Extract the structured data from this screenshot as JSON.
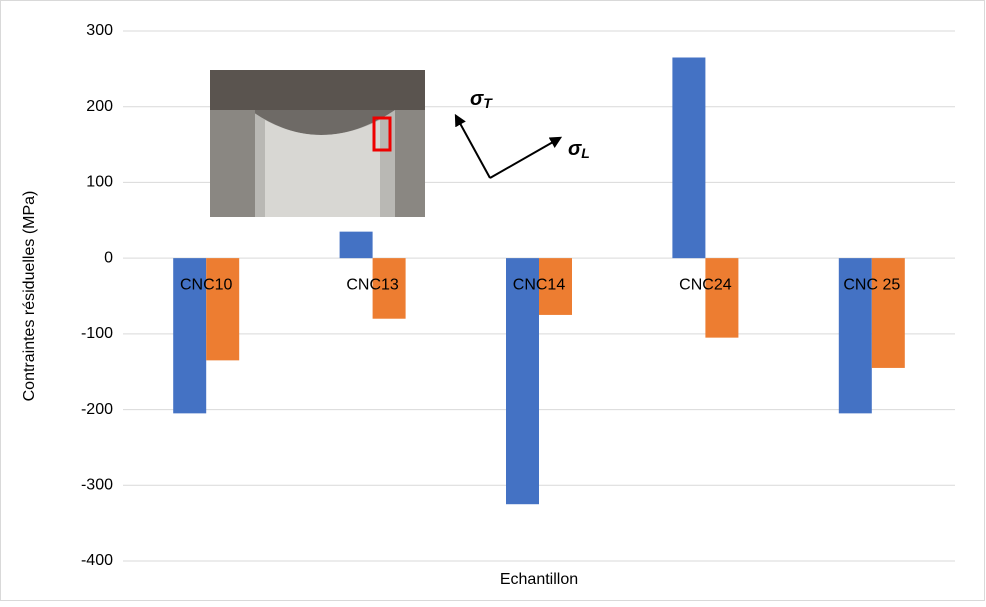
{
  "chart_data": {
    "type": "bar",
    "y_label": "Contraintes résiduelles (MPa)",
    "x_label": "Echantillon",
    "categories": [
      "CNC10",
      "CNC13",
      "CNC14",
      "CNC24",
      "CNC 25"
    ],
    "series": [
      {
        "color": "#4472c4",
        "values": [
          -205,
          35,
          -325,
          265,
          -205
        ]
      },
      {
        "color": "#ed7d31",
        "values": [
          -135,
          -80,
          -75,
          -105,
          -145
        ]
      }
    ],
    "ylim": [
      -400,
      300
    ],
    "yticks": [
      -400,
      -300,
      -200,
      -100,
      0,
      100,
      200,
      300
    ],
    "grid": true,
    "annotations": [
      {
        "symbol": "σ",
        "sub": "T"
      },
      {
        "symbol": "σ",
        "sub": "L"
      }
    ]
  }
}
